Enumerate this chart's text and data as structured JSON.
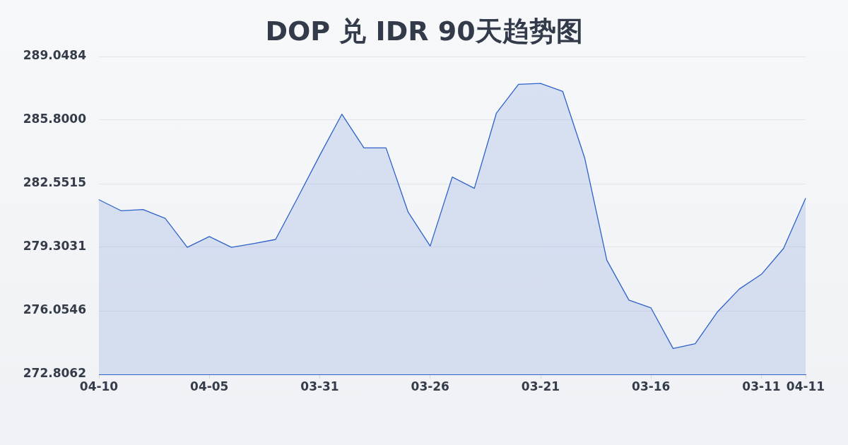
{
  "chart_data": {
    "type": "area",
    "title": "DOP 兑 IDR 90天趋势图",
    "categories": [
      "04-10",
      null,
      null,
      null,
      null,
      "04-05",
      null,
      null,
      null,
      null,
      "03-31",
      null,
      null,
      null,
      null,
      "03-26",
      null,
      null,
      null,
      null,
      "03-21",
      null,
      null,
      null,
      null,
      "03-16",
      null,
      null,
      null,
      null,
      "03-11",
      null,
      "04-11"
    ],
    "values": [
      281.73,
      281.17,
      281.23,
      280.78,
      279.3,
      279.85,
      279.3,
      279.49,
      279.7,
      281.83,
      284.0,
      286.1,
      284.38,
      284.38,
      281.1,
      279.36,
      282.89,
      282.31,
      286.16,
      287.63,
      287.67,
      287.27,
      283.85,
      278.64,
      276.6,
      276.2,
      274.13,
      274.37,
      275.99,
      277.17,
      277.92,
      279.24,
      281.8
    ],
    "color": "#2f62c9",
    "ylim": [
      272.8062,
      289.0484
    ],
    "yticks": [
      272.8062,
      276.0546,
      279.3031,
      282.5515,
      {
        "value": 285.8,
        "label": "285.8000"
      },
      289.0484
    ],
    "grid": "y",
    "marker": "none",
    "line_style": "solid"
  }
}
